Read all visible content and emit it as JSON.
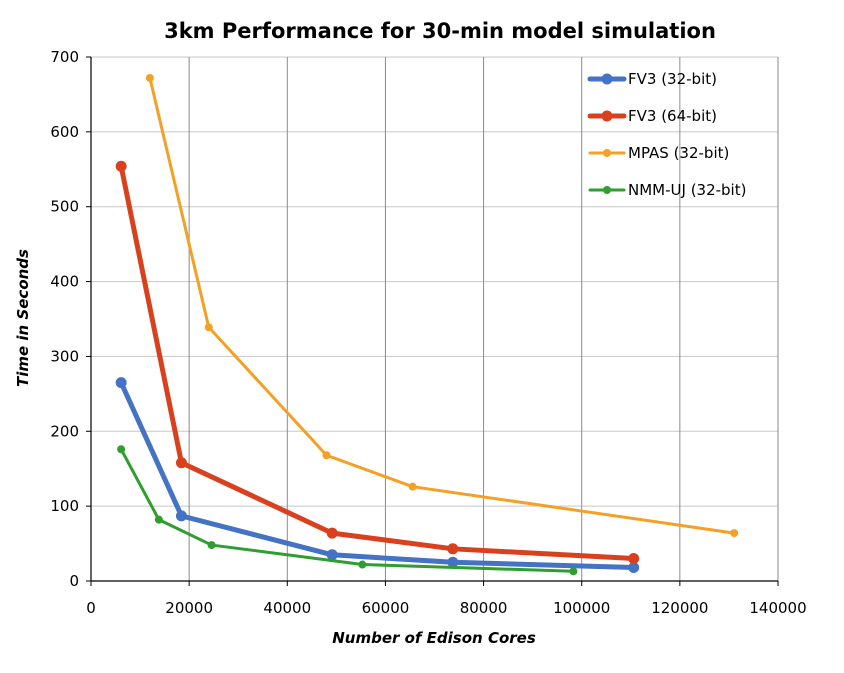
{
  "chart_data": {
    "type": "line",
    "title": "3km Performance for 30-min model simulation",
    "xlabel": "Number of Edison Cores",
    "ylabel": "Time in Seconds",
    "xlim": [
      0,
      140000
    ],
    "ylim": [
      0,
      700
    ],
    "x_ticks": [
      "0",
      "20000",
      "40000",
      "60000",
      "80000",
      "100000",
      "120000",
      "140000"
    ],
    "y_ticks": [
      "0",
      "100",
      "200",
      "300",
      "400",
      "500",
      "600",
      "700"
    ],
    "grid": true,
    "legend_position": "top-right",
    "series": [
      {
        "name": "FV3 (32-bit)",
        "color": "#4472C4",
        "line_weight": "thick",
        "x": [
          6144,
          18432,
          49152,
          73728,
          110592
        ],
        "y": [
          265,
          87,
          35,
          25,
          18
        ]
      },
      {
        "name": "FV3 (64-bit)",
        "color": "#D9411E",
        "line_weight": "thick",
        "x": [
          6144,
          18432,
          49152,
          73728,
          110592
        ],
        "y": [
          554,
          158,
          64,
          43,
          30
        ]
      },
      {
        "name": "MPAS (32-bit)",
        "color": "#F4A024",
        "line_weight": "medium",
        "x": [
          12000,
          24000,
          48000,
          65536,
          131072
        ],
        "y": [
          672,
          339,
          168,
          126,
          64
        ]
      },
      {
        "name": "NMM-UJ (32-bit)",
        "color": "#2E9E2E",
        "line_weight": "medium",
        "x": [
          6144,
          13824,
          24576,
          55296,
          98304
        ],
        "y": [
          176,
          82,
          48,
          22,
          13
        ]
      }
    ]
  }
}
